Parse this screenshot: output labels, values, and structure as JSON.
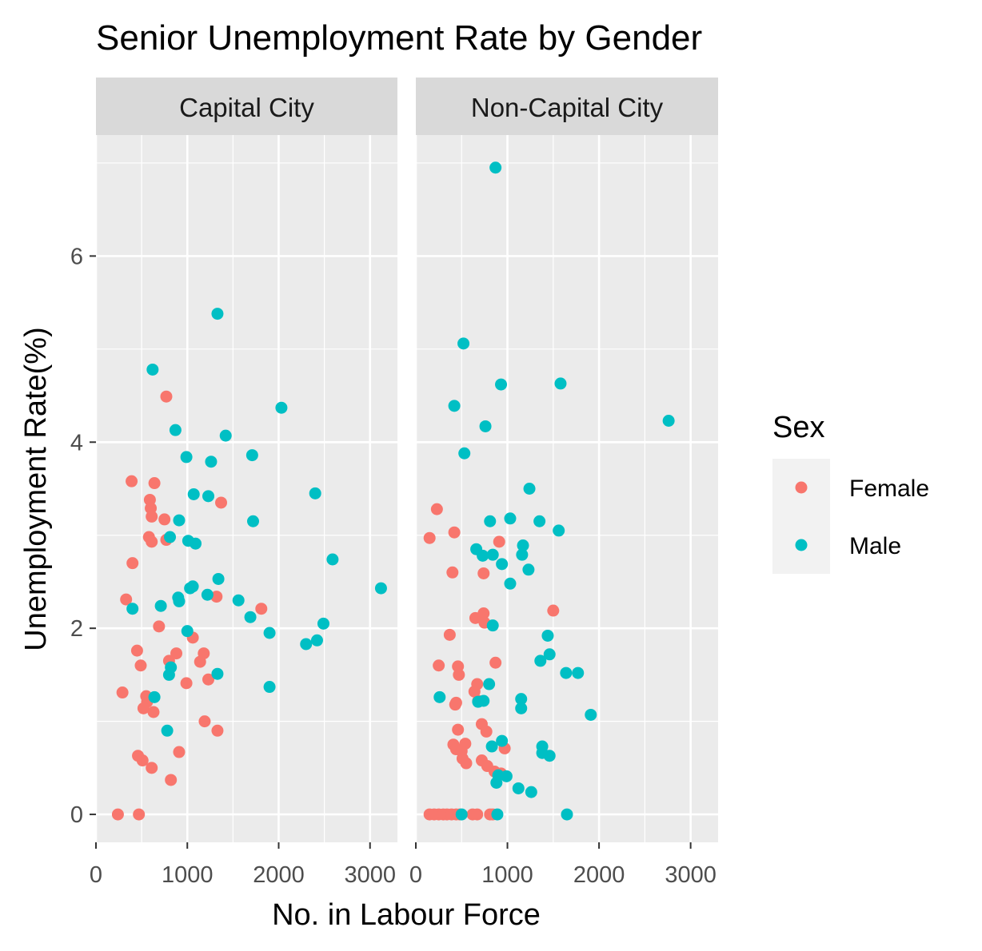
{
  "chart_data": {
    "type": "scatter",
    "title": "Senior Unemployment Rate by Gender",
    "xlabel": "No. in Labour Force",
    "ylabel": "Unemployment Rate(%)",
    "xlim": [
      0,
      3300
    ],
    "ylim": [
      -0.3,
      7.3
    ],
    "x_ticks": [
      0,
      1000,
      2000,
      3000
    ],
    "y_ticks": [
      0,
      2,
      4,
      6
    ],
    "grid": true,
    "legend": {
      "title": "Sex",
      "position": "right",
      "entries": [
        {
          "name": "Female",
          "color": "#F8766D"
        },
        {
          "name": "Male",
          "color": "#00BFC4"
        }
      ]
    },
    "panels": [
      {
        "label": "Capital City",
        "series": [
          {
            "name": "Female",
            "color": "#F8766D",
            "points": [
              [
                770,
                4.49
              ],
              [
                390,
                3.58
              ],
              [
                640,
                3.56
              ],
              [
                590,
                3.38
              ],
              [
                600,
                3.29
              ],
              [
                610,
                3.2
              ],
              [
                750,
                3.17
              ],
              [
                1370,
                3.35
              ],
              [
                580,
                2.98
              ],
              [
                610,
                2.93
              ],
              [
                770,
                2.95
              ],
              [
                400,
                2.7
              ],
              [
                330,
                2.31
              ],
              [
                1320,
                2.34
              ],
              [
                1810,
                2.21
              ],
              [
                690,
                2.02
              ],
              [
                1060,
                1.9
              ],
              [
                450,
                1.76
              ],
              [
                880,
                1.73
              ],
              [
                1180,
                1.73
              ],
              [
                800,
                1.65
              ],
              [
                1140,
                1.64
              ],
              [
                490,
                1.6
              ],
              [
                1230,
                1.45
              ],
              [
                990,
                1.41
              ],
              [
                290,
                1.31
              ],
              [
                550,
                1.27
              ],
              [
                560,
                1.21
              ],
              [
                520,
                1.14
              ],
              [
                630,
                1.1
              ],
              [
                1190,
                1.0
              ],
              [
                1330,
                0.9
              ],
              [
                910,
                0.67
              ],
              [
                460,
                0.63
              ],
              [
                510,
                0.58
              ],
              [
                610,
                0.5
              ],
              [
                820,
                0.37
              ],
              [
                240,
                0.0
              ],
              [
                470,
                0.0
              ]
            ]
          },
          {
            "name": "Male",
            "color": "#00BFC4",
            "points": [
              [
                1330,
                5.38
              ],
              [
                620,
                4.78
              ],
              [
                2030,
                4.37
              ],
              [
                870,
                4.13
              ],
              [
                1420,
                4.07
              ],
              [
                990,
                3.84
              ],
              [
                1710,
                3.86
              ],
              [
                1260,
                3.79
              ],
              [
                2400,
                3.45
              ],
              [
                1070,
                3.44
              ],
              [
                1230,
                3.42
              ],
              [
                910,
                3.16
              ],
              [
                1720,
                3.15
              ],
              [
                810,
                2.98
              ],
              [
                1010,
                2.94
              ],
              [
                1090,
                2.91
              ],
              [
                2590,
                2.74
              ],
              [
                1340,
                2.53
              ],
              [
                1060,
                2.45
              ],
              [
                1030,
                2.43
              ],
              [
                3120,
                2.43
              ],
              [
                1220,
                2.36
              ],
              [
                900,
                2.33
              ],
              [
                910,
                2.29
              ],
              [
                1560,
                2.3
              ],
              [
                710,
                2.24
              ],
              [
                400,
                2.21
              ],
              [
                1690,
                2.12
              ],
              [
                1000,
                1.97
              ],
              [
                2490,
                2.05
              ],
              [
                1900,
                1.95
              ],
              [
                2300,
                1.83
              ],
              [
                2420,
                1.87
              ],
              [
                820,
                1.58
              ],
              [
                800,
                1.5
              ],
              [
                1330,
                1.51
              ],
              [
                1900,
                1.37
              ],
              [
                640,
                1.26
              ],
              [
                780,
                0.9
              ]
            ]
          }
        ]
      },
      {
        "label": "Non-Capital City",
        "series": [
          {
            "name": "Female",
            "color": "#F8766D",
            "points": [
              [
                230,
                3.28
              ],
              [
                150,
                2.97
              ],
              [
                420,
                3.03
              ],
              [
                910,
                2.93
              ],
              [
                400,
                2.6
              ],
              [
                740,
                2.59
              ],
              [
                1500,
                2.19
              ],
              [
                650,
                2.11
              ],
              [
                740,
                2.16
              ],
              [
                750,
                2.06
              ],
              [
                370,
                1.93
              ],
              [
                250,
                1.6
              ],
              [
                460,
                1.59
              ],
              [
                870,
                1.63
              ],
              [
                470,
                1.5
              ],
              [
                670,
                1.4
              ],
              [
                640,
                1.32
              ],
              [
                440,
                1.2
              ],
              [
                430,
                1.18
              ],
              [
                680,
                1.22
              ],
              [
                720,
                0.97
              ],
              [
                460,
                0.91
              ],
              [
                770,
                0.89
              ],
              [
                410,
                0.75
              ],
              [
                440,
                0.7
              ],
              [
                540,
                0.76
              ],
              [
                500,
                0.68
              ],
              [
                510,
                0.6
              ],
              [
                550,
                0.55
              ],
              [
                720,
                0.58
              ],
              [
                780,
                0.52
              ],
              [
                860,
                0.46
              ],
              [
                930,
                0.44
              ],
              [
                970,
                0.71
              ],
              [
                150,
                0.0
              ],
              [
                200,
                0.0
              ],
              [
                250,
                0.0
              ],
              [
                300,
                0.0
              ],
              [
                340,
                0.0
              ],
              [
                390,
                0.0
              ],
              [
                440,
                0.0
              ],
              [
                480,
                0.0
              ],
              [
                620,
                0.0
              ],
              [
                670,
                0.0
              ],
              [
                810,
                0.0
              ],
              [
                840,
                0.0
              ]
            ]
          },
          {
            "name": "Male",
            "color": "#00BFC4",
            "points": [
              [
                870,
                6.95
              ],
              [
                520,
                5.06
              ],
              [
                1580,
                4.63
              ],
              [
                930,
                4.62
              ],
              [
                420,
                4.39
              ],
              [
                760,
                4.17
              ],
              [
                2760,
                4.23
              ],
              [
                530,
                3.88
              ],
              [
                1240,
                3.5
              ],
              [
                1030,
                3.18
              ],
              [
                1350,
                3.15
              ],
              [
                810,
                3.15
              ],
              [
                1560,
                3.05
              ],
              [
                1170,
                2.89
              ],
              [
                660,
                2.85
              ],
              [
                730,
                2.78
              ],
              [
                840,
                2.79
              ],
              [
                1160,
                2.79
              ],
              [
                940,
                2.69
              ],
              [
                1230,
                2.63
              ],
              [
                1030,
                2.48
              ],
              [
                840,
                2.03
              ],
              [
                1440,
                1.92
              ],
              [
                1460,
                1.72
              ],
              [
                1360,
                1.65
              ],
              [
                1640,
                1.52
              ],
              [
                1770,
                1.52
              ],
              [
                800,
                1.4
              ],
              [
                260,
                1.26
              ],
              [
                1150,
                1.24
              ],
              [
                680,
                1.21
              ],
              [
                740,
                1.22
              ],
              [
                1150,
                1.14
              ],
              [
                1910,
                1.07
              ],
              [
                940,
                0.79
              ],
              [
                830,
                0.73
              ],
              [
                1380,
                0.73
              ],
              [
                1380,
                0.66
              ],
              [
                1460,
                0.63
              ],
              [
                900,
                0.42
              ],
              [
                990,
                0.41
              ],
              [
                880,
                0.34
              ],
              [
                1120,
                0.28
              ],
              [
                1260,
                0.24
              ],
              [
                500,
                0.0
              ],
              [
                890,
                0.0
              ],
              [
                1650,
                0.0
              ]
            ]
          }
        ]
      }
    ]
  }
}
